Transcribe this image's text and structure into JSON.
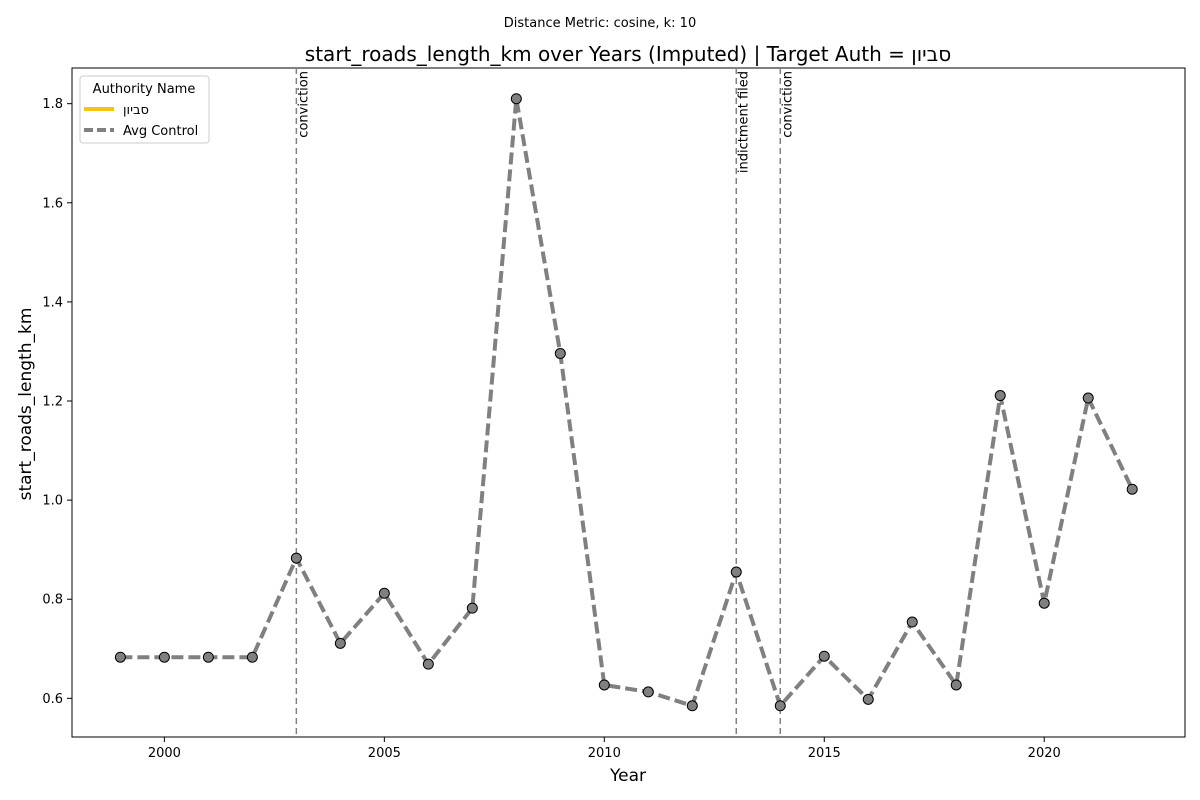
{
  "figure": {
    "suptitle": "Distance Metric: cosine, k: 10"
  },
  "chart_data": {
    "type": "line",
    "title": "start_roads_length_km over Years (Imputed) | Target Auth = סביון",
    "xlabel": "Year",
    "ylabel": "start_roads_length_km",
    "xlim": [
      1997.9,
      2023.2
    ],
    "ylim": [
      0.522,
      1.872
    ],
    "x_ticks": [
      2000,
      2005,
      2010,
      2015,
      2020
    ],
    "y_ticks": [
      0.6,
      0.8,
      1.0,
      1.2,
      1.4,
      1.6,
      1.8
    ],
    "y_tick_labels": [
      "0.6",
      "0.8",
      "1.0",
      "1.2",
      "1.4",
      "1.6",
      "1.8"
    ],
    "grid": false,
    "legend": {
      "title": "Authority Name",
      "placement": "upper-left",
      "entries": [
        {
          "label": "סביון",
          "color": "#f0c814",
          "style": "solid"
        },
        {
          "label": "Avg Control",
          "color": "#808080",
          "style": "dashed"
        }
      ]
    },
    "series": [
      {
        "name": "Avg Control",
        "color": "#808080",
        "marker_face": "#808080",
        "marker_edge": "#000000",
        "x": [
          1999,
          2000,
          2001,
          2002,
          2003,
          2004,
          2005,
          2006,
          2007,
          2008,
          2009,
          2010,
          2011,
          2012,
          2013,
          2014,
          2015,
          2016,
          2017,
          2018,
          2019,
          2020,
          2021,
          2022
        ],
        "y": [
          0.683,
          0.683,
          0.683,
          0.683,
          0.883,
          0.711,
          0.812,
          0.669,
          0.782,
          1.81,
          1.296,
          0.627,
          0.613,
          0.585,
          0.855,
          0.585,
          0.685,
          0.598,
          0.754,
          0.627,
          1.211,
          0.792,
          1.206,
          1.022
        ]
      }
    ],
    "annotations": [
      {
        "x": 2003,
        "label": "conviction"
      },
      {
        "x": 2013,
        "label": "indictment filed"
      },
      {
        "x": 2014,
        "label": "conviction"
      }
    ]
  }
}
